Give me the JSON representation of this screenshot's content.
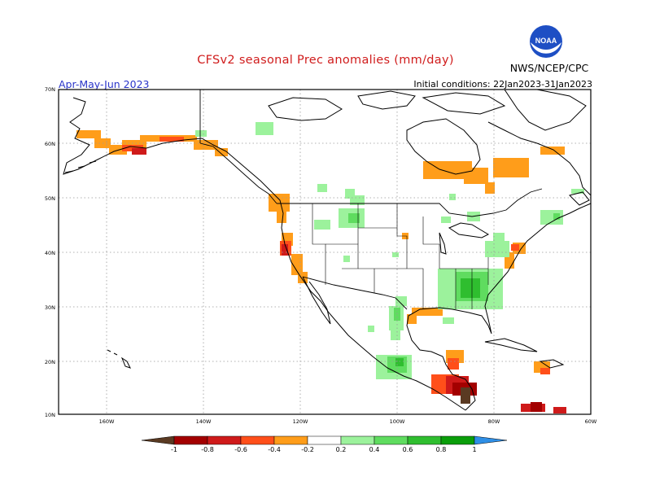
{
  "title": "CFSv2 seasonal Prec anomalies (mm/day)",
  "period": "Apr-May-Jun 2023",
  "initial_conditions": "Initial conditions: 22Jan2023-31Jan2023",
  "agency": "NWS/NCEP/CPC",
  "logo_text": "NOAA",
  "map": {
    "lat_labels": [
      "70N",
      "60N",
      "50N",
      "40N",
      "30N",
      "20N",
      "10N"
    ],
    "lon_labels": [
      "160W",
      "140W",
      "120W",
      "100W",
      "80W",
      "60W"
    ]
  },
  "legend": {
    "labels": [
      "-1",
      "-0.8",
      "-0.6",
      "-0.4",
      "-0.2",
      "0.2",
      "0.4",
      "0.6",
      "0.8",
      "1"
    ],
    "colors": [
      "#5a3a22",
      "#a30000",
      "#cf1a1a",
      "#ff4f1a",
      "#ff9d1a",
      "#ffffff",
      "#9cf29c",
      "#5fdc5f",
      "#2fbe2f",
      "#0a9e0a",
      "#2f8fe6"
    ]
  }
}
